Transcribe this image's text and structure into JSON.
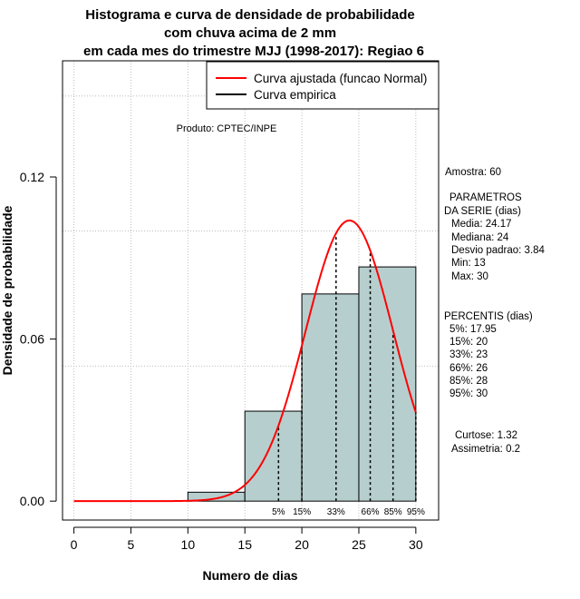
{
  "chart_data": {
    "type": "bar",
    "title_lines": [
      "Histograma e curva de densidade de probabilidade",
      "com chuva acima de 2 mm",
      "em cada mes do trimestre MJJ (1998-2017): Regiao 6"
    ],
    "xlabel": "Numero de dias",
    "ylabel": "Densidade de probabilidade",
    "xlim": [
      -1,
      32
    ],
    "ylim": [
      -0.007,
      0.163
    ],
    "x_ticks": [
      0,
      5,
      10,
      15,
      20,
      25,
      30
    ],
    "x_tick_labels": [
      "0",
      "5",
      "10",
      "15",
      "20",
      "25",
      "30"
    ],
    "y_ticks": [
      0.0,
      0.06,
      0.12
    ],
    "y_tick_labels": [
      "0.00",
      "0.06",
      "0.12"
    ],
    "grid_y": [
      0.05,
      0.1,
      0.15
    ],
    "grid": true,
    "histogram": {
      "bins": [
        [
          10,
          15
        ],
        [
          15,
          20
        ],
        [
          20,
          25
        ],
        [
          25,
          30
        ]
      ],
      "densities": [
        0.0033,
        0.0333,
        0.0767,
        0.0867
      ],
      "fill_color": "#b6cfce"
    },
    "normal_curve": {
      "name": "Curva ajustada (funcao Normal)",
      "mean": 24.17,
      "sd": 3.84,
      "x_range": [
        0,
        30
      ],
      "color": "#ff0000"
    },
    "percentile_lines": [
      {
        "x": 17.95,
        "label": "5%"
      },
      {
        "x": 20,
        "label": "15%"
      },
      {
        "x": 23,
        "label": "33%"
      },
      {
        "x": 26,
        "label": "66%"
      },
      {
        "x": 28,
        "label": "85%"
      },
      {
        "x": 30,
        "label": "95%"
      }
    ],
    "legend": [
      {
        "label": "Curva ajustada (funcao Normal)",
        "color": "#ff0000"
      },
      {
        "label": "Curva empirica",
        "color": "#000000"
      }
    ],
    "legend_position": "top-right",
    "annotation": "Produto: CPTEC/INPE"
  },
  "stats_panel": {
    "sample": "Amostra: 60",
    "params_title": "PARAMETROS",
    "params_sub": "DA SERIE (dias)",
    "params": [
      "Media: 24.17",
      "Mediana: 24",
      "Desvio padrao: 3.84",
      "Min: 13",
      "Max: 30"
    ],
    "pct_title": "PERCENTIS (dias)",
    "pcts": [
      "5%: 17.95",
      "15%: 20",
      "33%: 23",
      "66%: 26",
      "85%: 28",
      "95%: 30"
    ],
    "kurtosis": "Curtose: 1.32",
    "skewness": "Assimetria: 0.2"
  }
}
